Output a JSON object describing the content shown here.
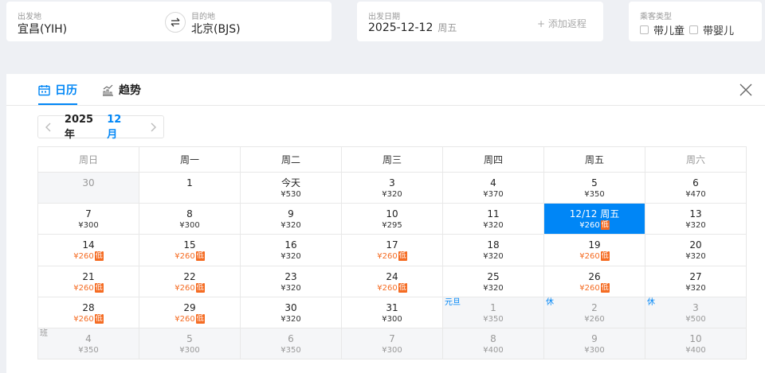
{
  "search": {
    "from_label": "出发地",
    "from_value": "宜昌(YIH)",
    "to_label": "目的地",
    "to_value": "北京(BJS)",
    "date_label": "出发日期",
    "date_value": "2025-12-12",
    "date_weekday": "周五",
    "add_return": "+ 添加返程",
    "passenger_label": "乘客类型",
    "with_child": "带儿童",
    "with_infant": "带婴儿"
  },
  "tabs": [
    {
      "label": "日历"
    },
    {
      "label": "趋势"
    }
  ],
  "month_nav": {
    "year": "2025年",
    "month": "12月"
  },
  "weekdays": [
    "周日",
    "周一",
    "周二",
    "周三",
    "周四",
    "周五",
    "周六"
  ],
  "weeks": [
    [
      {
        "d": "30",
        "p": "",
        "state": "gray"
      },
      {
        "d": "1",
        "p": "",
        "state": ""
      },
      {
        "d": "今天",
        "p": "¥530",
        "state": ""
      },
      {
        "d": "3",
        "p": "¥320",
        "state": ""
      },
      {
        "d": "4",
        "p": "¥370",
        "state": ""
      },
      {
        "d": "5",
        "p": "¥350",
        "state": ""
      },
      {
        "d": "6",
        "p": "¥470",
        "state": ""
      }
    ],
    [
      {
        "d": "7",
        "p": "¥300",
        "state": ""
      },
      {
        "d": "8",
        "p": "¥300",
        "state": ""
      },
      {
        "d": "9",
        "p": "¥320",
        "state": ""
      },
      {
        "d": "10",
        "p": "¥295",
        "state": ""
      },
      {
        "d": "11",
        "p": "¥320",
        "state": ""
      },
      {
        "d": "12/12 周五",
        "p": "¥260",
        "state": "sel",
        "tag": "低"
      },
      {
        "d": "13",
        "p": "¥320",
        "state": ""
      }
    ],
    [
      {
        "d": "14",
        "p": "¥260",
        "state": "low",
        "tag": "低"
      },
      {
        "d": "15",
        "p": "¥260",
        "state": "low",
        "tag": "低"
      },
      {
        "d": "16",
        "p": "¥320",
        "state": ""
      },
      {
        "d": "17",
        "p": "¥260",
        "state": "low",
        "tag": "低"
      },
      {
        "d": "18",
        "p": "¥320",
        "state": ""
      },
      {
        "d": "19",
        "p": "¥260",
        "state": "low",
        "tag": "低"
      },
      {
        "d": "20",
        "p": "¥320",
        "state": ""
      }
    ],
    [
      {
        "d": "21",
        "p": "¥260",
        "state": "low",
        "tag": "低"
      },
      {
        "d": "22",
        "p": "¥260",
        "state": "low",
        "tag": "低"
      },
      {
        "d": "23",
        "p": "¥320",
        "state": ""
      },
      {
        "d": "24",
        "p": "¥260",
        "state": "low",
        "tag": "低"
      },
      {
        "d": "25",
        "p": "¥320",
        "state": ""
      },
      {
        "d": "26",
        "p": "¥260",
        "state": "low",
        "tag": "低"
      },
      {
        "d": "27",
        "p": "¥320",
        "state": ""
      }
    ],
    [
      {
        "d": "28",
        "p": "¥260",
        "state": "low",
        "tag": "低"
      },
      {
        "d": "29",
        "p": "¥260",
        "state": "low",
        "tag": "低"
      },
      {
        "d": "30",
        "p": "¥320",
        "state": ""
      },
      {
        "d": "31",
        "p": "¥300",
        "state": ""
      },
      {
        "d": "1",
        "p": "¥350",
        "state": "gray",
        "corner": "元旦"
      },
      {
        "d": "2",
        "p": "¥260",
        "state": "gray",
        "corner": "休"
      },
      {
        "d": "3",
        "p": "¥500",
        "state": "gray",
        "corner": "休"
      }
    ],
    [
      {
        "d": "4",
        "p": "¥350",
        "state": "gray",
        "corner": "班",
        "cornerType": "ban"
      },
      {
        "d": "5",
        "p": "¥300",
        "state": "gray"
      },
      {
        "d": "6",
        "p": "¥350",
        "state": "gray"
      },
      {
        "d": "7",
        "p": "¥300",
        "state": "gray"
      },
      {
        "d": "8",
        "p": "¥400",
        "state": "gray"
      },
      {
        "d": "9",
        "p": "¥300",
        "state": "gray"
      },
      {
        "d": "10",
        "p": "¥400",
        "state": "gray"
      }
    ]
  ],
  "colors": {
    "accent": "#0086f6",
    "low": "#f56c23"
  },
  "icons": {
    "calendar": "calendar-icon",
    "trend": "chart-icon",
    "close": "close-icon",
    "swap": "swap-icon"
  }
}
